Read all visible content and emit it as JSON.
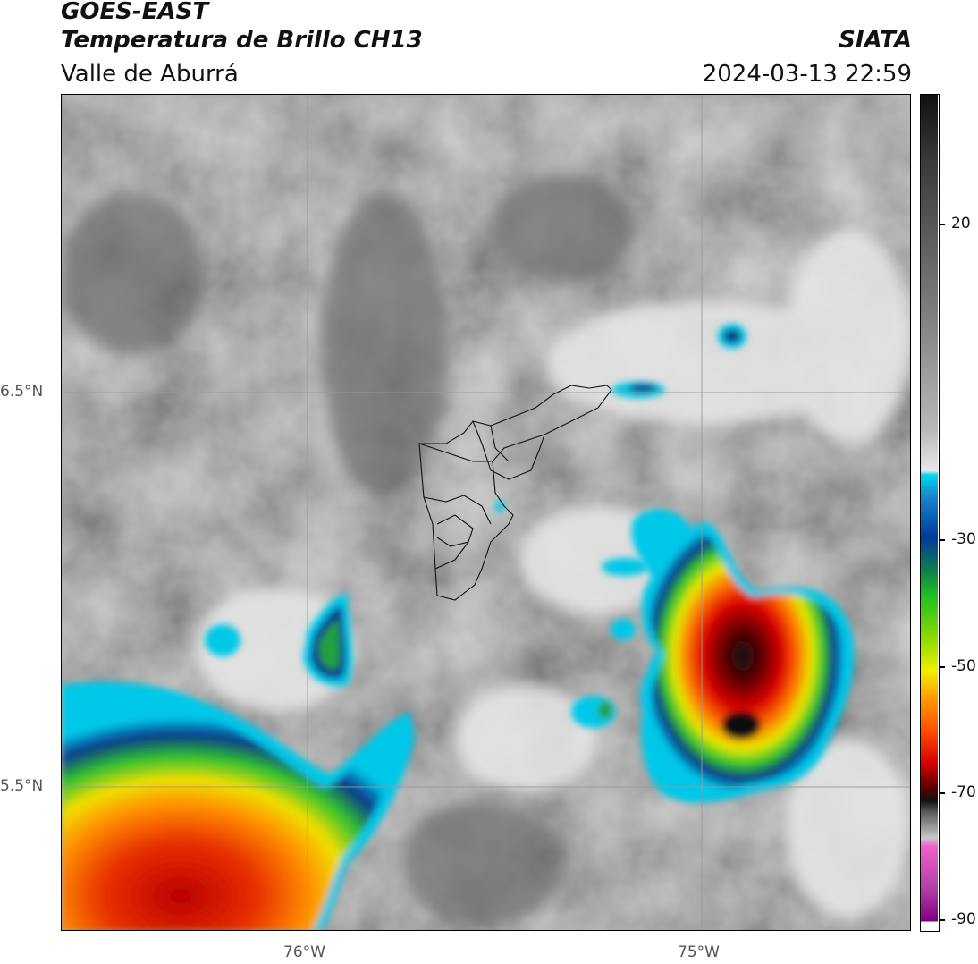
{
  "header": {
    "satellite": "GOES-EAST",
    "product": "Temperatura de Brillo CH13",
    "region": "Valle de Aburrá",
    "organization": "SIATA",
    "timestamp": "2024-03-13 22:59"
  },
  "axes": {
    "lat_labels": [
      "6.5°N",
      "5.5°N"
    ],
    "lon_labels": [
      "76°W",
      "75°W"
    ]
  },
  "colorbar": {
    "tick_labels": [
      "20",
      "-30",
      "-50",
      "-70",
      "-90"
    ],
    "colors": {
      "warm_gray_top": "#111111",
      "mid_gray": "#8a8a8a",
      "light_gray": "#f0f0f0",
      "cyan": "#00d8f0",
      "blue": "#003a9a",
      "green": "#20c020",
      "yellow": "#f0f000",
      "orange": "#ff8c00",
      "red": "#e00000",
      "dark_red": "#5a0000",
      "magenta": "#e060c8",
      "purple": "#800080"
    }
  }
}
